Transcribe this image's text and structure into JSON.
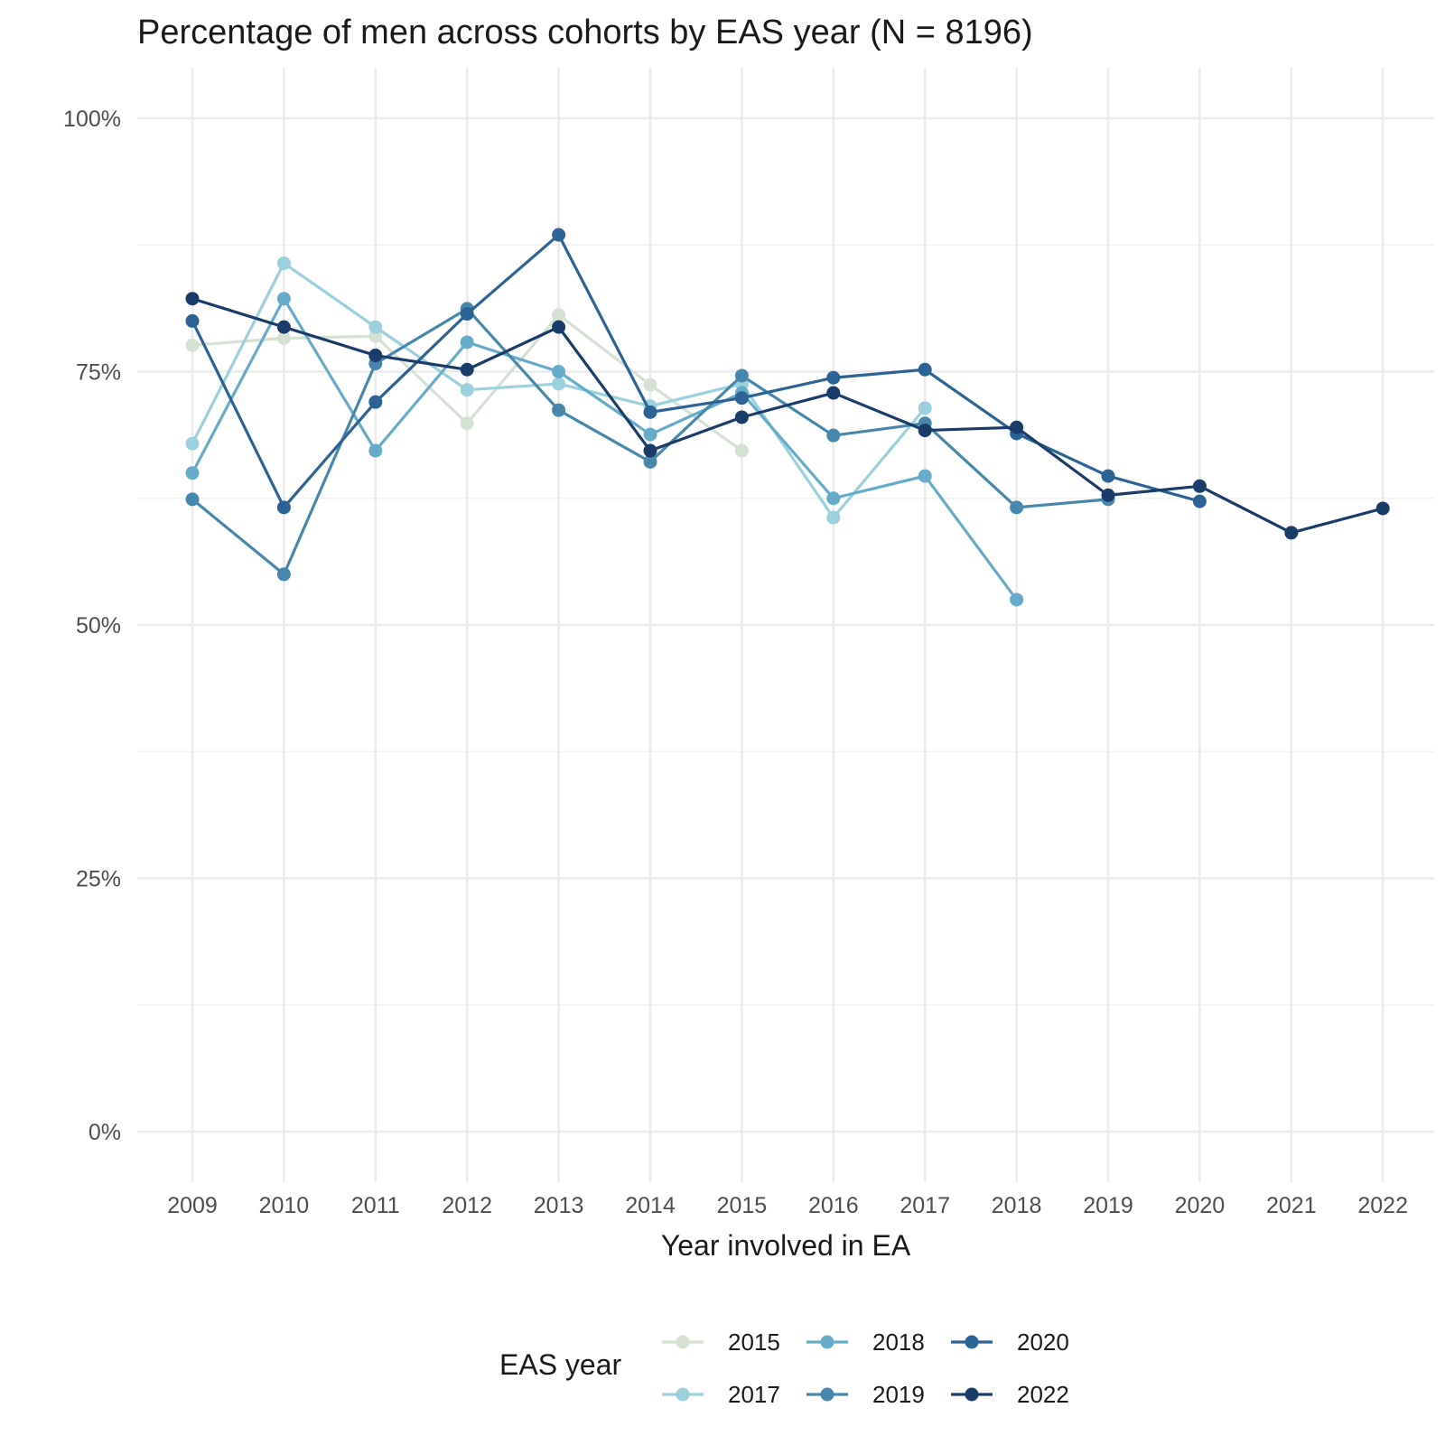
{
  "chart_data": {
    "type": "line",
    "title": "Percentage of men across cohorts by EAS year (N = 8196)",
    "xlabel": "Year involved in EA",
    "ylabel": "",
    "categories": [
      "2009",
      "2010",
      "2011",
      "2012",
      "2013",
      "2014",
      "2015",
      "2016",
      "2017",
      "2018",
      "2019",
      "2020",
      "2021",
      "2022"
    ],
    "ylim": [
      -0.05,
      1.05
    ],
    "yticks": [
      0,
      0.25,
      0.5,
      0.75,
      1.0
    ],
    "ytick_labels": [
      "0%",
      "25%",
      "50%",
      "75%",
      "100%"
    ],
    "grid": true,
    "legend_title": "EAS year",
    "legend_position": "bottom",
    "series": [
      {
        "name": "2015",
        "color": "#d5e1d3",
        "values": [
          0.776,
          0.783,
          0.785,
          0.699,
          0.806,
          0.737,
          0.672,
          null,
          null,
          null,
          null,
          null,
          null,
          null
        ]
      },
      {
        "name": "2017",
        "color": "#9dd0dd",
        "values": [
          0.679,
          0.857,
          0.794,
          0.732,
          0.738,
          0.716,
          0.738,
          0.606,
          0.714,
          null,
          null,
          null,
          null,
          null
        ]
      },
      {
        "name": "2018",
        "color": "#66acc9",
        "values": [
          0.65,
          0.822,
          0.672,
          0.779,
          0.75,
          0.688,
          0.729,
          0.625,
          0.647,
          0.525,
          null,
          null,
          null,
          null
        ]
      },
      {
        "name": "2019",
        "color": "#4787ab",
        "values": [
          0.624,
          0.55,
          0.758,
          0.812,
          0.712,
          0.661,
          0.746,
          0.687,
          0.699,
          0.616,
          0.624,
          null,
          null,
          null
        ]
      },
      {
        "name": "2020",
        "color": "#2d6394",
        "values": [
          0.8,
          0.616,
          0.72,
          0.807,
          0.885,
          0.71,
          0.724,
          0.744,
          0.752,
          0.689,
          0.647,
          0.622,
          null,
          null
        ]
      },
      {
        "name": "2022",
        "color": "#1b3c69",
        "values": [
          0.822,
          0.794,
          0.766,
          0.752,
          0.794,
          0.672,
          0.705,
          0.729,
          0.692,
          0.695,
          0.628,
          0.637,
          0.591,
          0.615
        ]
      }
    ]
  }
}
